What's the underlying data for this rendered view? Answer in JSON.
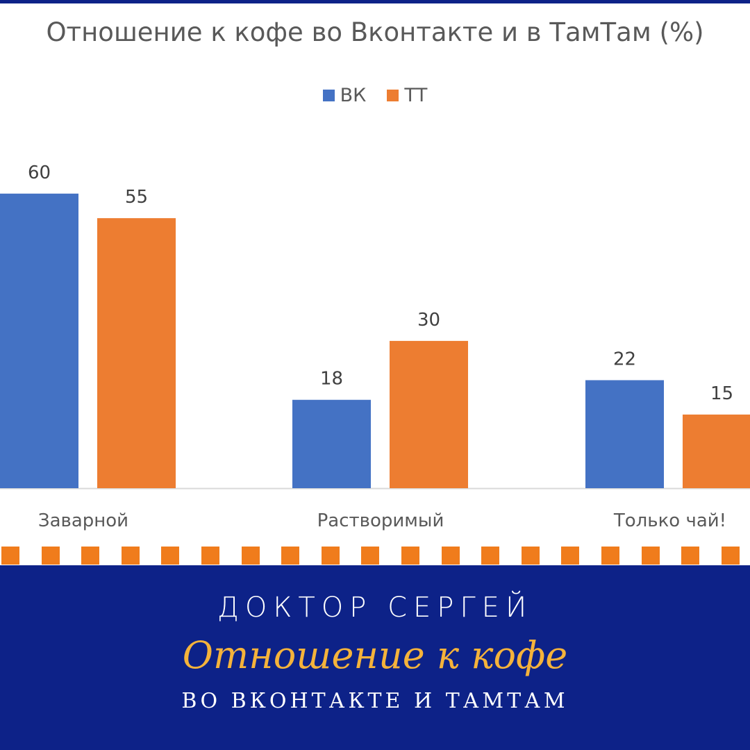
{
  "chart_data": {
    "type": "bar",
    "title": "Отношение к кофе во Вконтакте и в ТамТам (%)",
    "categories": [
      "Заварной",
      "Растворимый",
      "Только чай!"
    ],
    "series": [
      {
        "name": "ВК",
        "color": "#4472c4",
        "values": [
          60,
          18,
          22
        ]
      },
      {
        "name": "ТТ",
        "color": "#ed7d31",
        "values": [
          55,
          30,
          15
        ]
      }
    ],
    "ylim": [
      0,
      60
    ],
    "grid": false,
    "legend_position": "top-center",
    "data_labels": true
  },
  "footer": {
    "author": "ДОКТОР СЕРГЕЙ",
    "headline": "Отношение к кофе",
    "subline": "ВО ВКОНТАКТЕ И ТАМТАМ",
    "background": "#0d2288",
    "accent": "#f07c1c",
    "headline_color": "#f5b33b"
  }
}
